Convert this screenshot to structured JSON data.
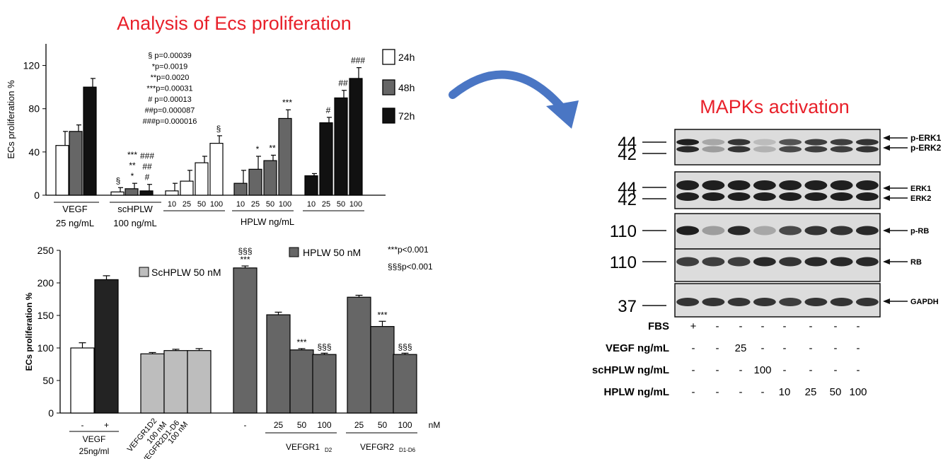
{
  "titles": {
    "left": "Analysis of Ecs proliferation",
    "right": "MAPKs activation"
  },
  "colors": {
    "title": "#e8202a",
    "arrow": "#4a76c4",
    "white_bar": "#ffffff",
    "gray_bar": "#666666",
    "light_gray_bar": "#bdbdbd",
    "black_bar": "#111111",
    "dark_bar": "#232323"
  },
  "chart_data": [
    {
      "type": "bar",
      "ylabel": "ECs proliferation %",
      "ylim": [
        0,
        140
      ],
      "yticks": [
        "0",
        "40",
        "80",
        "120"
      ],
      "ytick_values": [
        0,
        40,
        80,
        120
      ],
      "legend": [
        {
          "name": "24h",
          "color": "#ffffff"
        },
        {
          "name": "48h",
          "color": "#666666"
        },
        {
          "name": "72h",
          "color": "#111111"
        }
      ],
      "stats_lines": [
        "§ p=0.00039",
        "*p=0.0019",
        "**p=0.0020",
        "***p=0.00031",
        "# p=0.00013",
        "##p=0.000087",
        "###p=0.000016"
      ],
      "groups": [
        {
          "label": [
            "VEGF",
            "25 ng/mL"
          ],
          "bars": [
            {
              "series": "24h",
              "value": 46,
              "err": 13,
              "tick": "",
              "annot": ""
            },
            {
              "series": "48h",
              "value": 59,
              "err": 6,
              "tick": "",
              "annot": ""
            },
            {
              "series": "72h",
              "value": 100,
              "err": 8,
              "tick": "",
              "annot": ""
            }
          ]
        },
        {
          "label": [
            "scHPLW",
            "100 ng/mL"
          ],
          "bars": [
            {
              "series": "24h",
              "value": 3,
              "err": 4,
              "tick": "",
              "annot": "§"
            },
            {
              "series": "48h",
              "value": 6,
              "err": 5,
              "tick": "",
              "annot": "***\n**\n*"
            },
            {
              "series": "72h",
              "value": 4,
              "err": 6,
              "tick": "",
              "annot": "###\n##\n#"
            }
          ]
        }
      ],
      "hplw_groups": {
        "label": "HPLW ng/mL",
        "sets": [
          {
            "series": "24h",
            "bars": [
              {
                "tick": "10",
                "value": 4,
                "err": 7,
                "annot": ""
              },
              {
                "tick": "25",
                "value": 13,
                "err": 10,
                "annot": ""
              },
              {
                "tick": "50",
                "value": 30,
                "err": 6,
                "annot": ""
              },
              {
                "tick": "100",
                "value": 48,
                "err": 7,
                "annot": "§"
              }
            ]
          },
          {
            "series": "48h",
            "bars": [
              {
                "tick": "10",
                "value": 11,
                "err": 12,
                "annot": ""
              },
              {
                "tick": "25",
                "value": 24,
                "err": 12,
                "annot": "*"
              },
              {
                "tick": "50",
                "value": 32,
                "err": 5,
                "annot": "**"
              },
              {
                "tick": "100",
                "value": 71,
                "err": 8,
                "annot": "***"
              }
            ]
          },
          {
            "series": "72h",
            "bars": [
              {
                "tick": "10",
                "value": 18,
                "err": 2,
                "annot": ""
              },
              {
                "tick": "25",
                "value": 67,
                "err": 5,
                "annot": "#"
              },
              {
                "tick": "50",
                "value": 90,
                "err": 7,
                "annot": "##"
              },
              {
                "tick": "100",
                "value": 108,
                "err": 10,
                "annot": "###"
              }
            ]
          }
        ]
      }
    },
    {
      "type": "bar",
      "ylabel": "ECs proliferation %",
      "ylim": [
        0,
        250
      ],
      "yticks": [
        "0",
        "50",
        "100",
        "150",
        "200",
        "250"
      ],
      "ytick_values": [
        0,
        50,
        100,
        150,
        200,
        250
      ],
      "legend": [
        {
          "name": "ScHPLW 50 nM",
          "color": "#bdbdbd"
        },
        {
          "name": "HPLW 50 nM",
          "color": "#666666"
        }
      ],
      "significance": [
        "***p<0.001",
        "§§§p<0.001"
      ],
      "bars": [
        {
          "tick": "-",
          "value": 100,
          "err": 8,
          "color": "white",
          "annot": []
        },
        {
          "tick": "+",
          "value": 205,
          "err": 6,
          "color": "dark",
          "annot": []
        },
        {
          "tick": "",
          "value": 91,
          "err": 2,
          "color": "light",
          "annot": []
        },
        {
          "tick": "",
          "value": 96,
          "err": 2,
          "color": "light",
          "annot": []
        },
        {
          "tick": "",
          "value": 96,
          "err": 3,
          "color": "light",
          "annot": []
        },
        {
          "tick": "-",
          "value": 223,
          "err": 3,
          "color": "gray",
          "annot": [
            "§§§",
            "***"
          ]
        },
        {
          "tick": "25",
          "value": 151,
          "err": 4,
          "color": "gray",
          "annot": []
        },
        {
          "tick": "50",
          "value": 97,
          "err": 2,
          "color": "gray",
          "annot": [
            "***"
          ]
        },
        {
          "tick": "100",
          "value": 90,
          "err": 2,
          "color": "gray",
          "annot": [
            "§§§"
          ]
        },
        {
          "tick": "25",
          "value": 178,
          "err": 3,
          "color": "gray",
          "annot": []
        },
        {
          "tick": "50",
          "value": 133,
          "err": 8,
          "color": "gray",
          "annot": [
            "***"
          ]
        },
        {
          "tick": "100",
          "value": 90,
          "err": 2,
          "color": "gray",
          "annot": [
            "§§§"
          ]
        }
      ],
      "unit_label": "nM",
      "group_labels": {
        "vegf": [
          "VEGF",
          "25ng/ml"
        ],
        "vegfr1_rot": [
          "VEFGR1D2",
          "100 nM"
        ],
        "vegfr2_rot": [
          "VEGFR2D1-D6",
          "100 nM"
        ],
        "vefgr1_main": "VEFGR1",
        "vefgr1_sub": "D2",
        "vefgr2_main": "VEFGR2",
        "vefgr2_sub": "D1-D6"
      }
    }
  ],
  "blot": {
    "mw_markers": [
      "44",
      "42",
      "44",
      "42",
      "110",
      "110",
      "37"
    ],
    "bands": [
      "p-ERK1",
      "p-ERK2",
      "ERK1",
      "ERK2",
      "p-RB",
      "RB",
      "GAPDH"
    ],
    "rows": [
      {
        "label": "FBS",
        "values": [
          "+",
          "-",
          "-",
          "-",
          "-",
          "-",
          "-",
          "-"
        ]
      },
      {
        "label": "VEGF ng/mL",
        "values": [
          "-",
          "-",
          "25",
          "-",
          "-",
          "-",
          "-",
          "-"
        ]
      },
      {
        "label": "scHPLW  ng/mL",
        "values": [
          "-",
          "-",
          "-",
          "100",
          "-",
          "-",
          "-",
          "-"
        ]
      },
      {
        "label": "HPLW ng/mL",
        "values": [
          "-",
          "-",
          "-",
          "-",
          "10",
          "25",
          "50",
          "100"
        ]
      }
    ],
    "intensity": {
      "perk1": [
        0.95,
        0.3,
        0.85,
        0.2,
        0.7,
        0.8,
        0.8,
        0.85
      ],
      "perk2": [
        0.9,
        0.35,
        0.85,
        0.25,
        0.75,
        0.8,
        0.8,
        0.85
      ],
      "erk": [
        0.95,
        0.95,
        0.95,
        0.95,
        0.95,
        0.95,
        0.95,
        0.95
      ],
      "prb": [
        0.95,
        0.35,
        0.9,
        0.3,
        0.75,
        0.85,
        0.85,
        0.9
      ],
      "rb": [
        0.8,
        0.8,
        0.8,
        0.9,
        0.85,
        0.9,
        0.9,
        0.9
      ],
      "gapdh": [
        0.85,
        0.85,
        0.85,
        0.85,
        0.8,
        0.85,
        0.85,
        0.85
      ]
    }
  }
}
